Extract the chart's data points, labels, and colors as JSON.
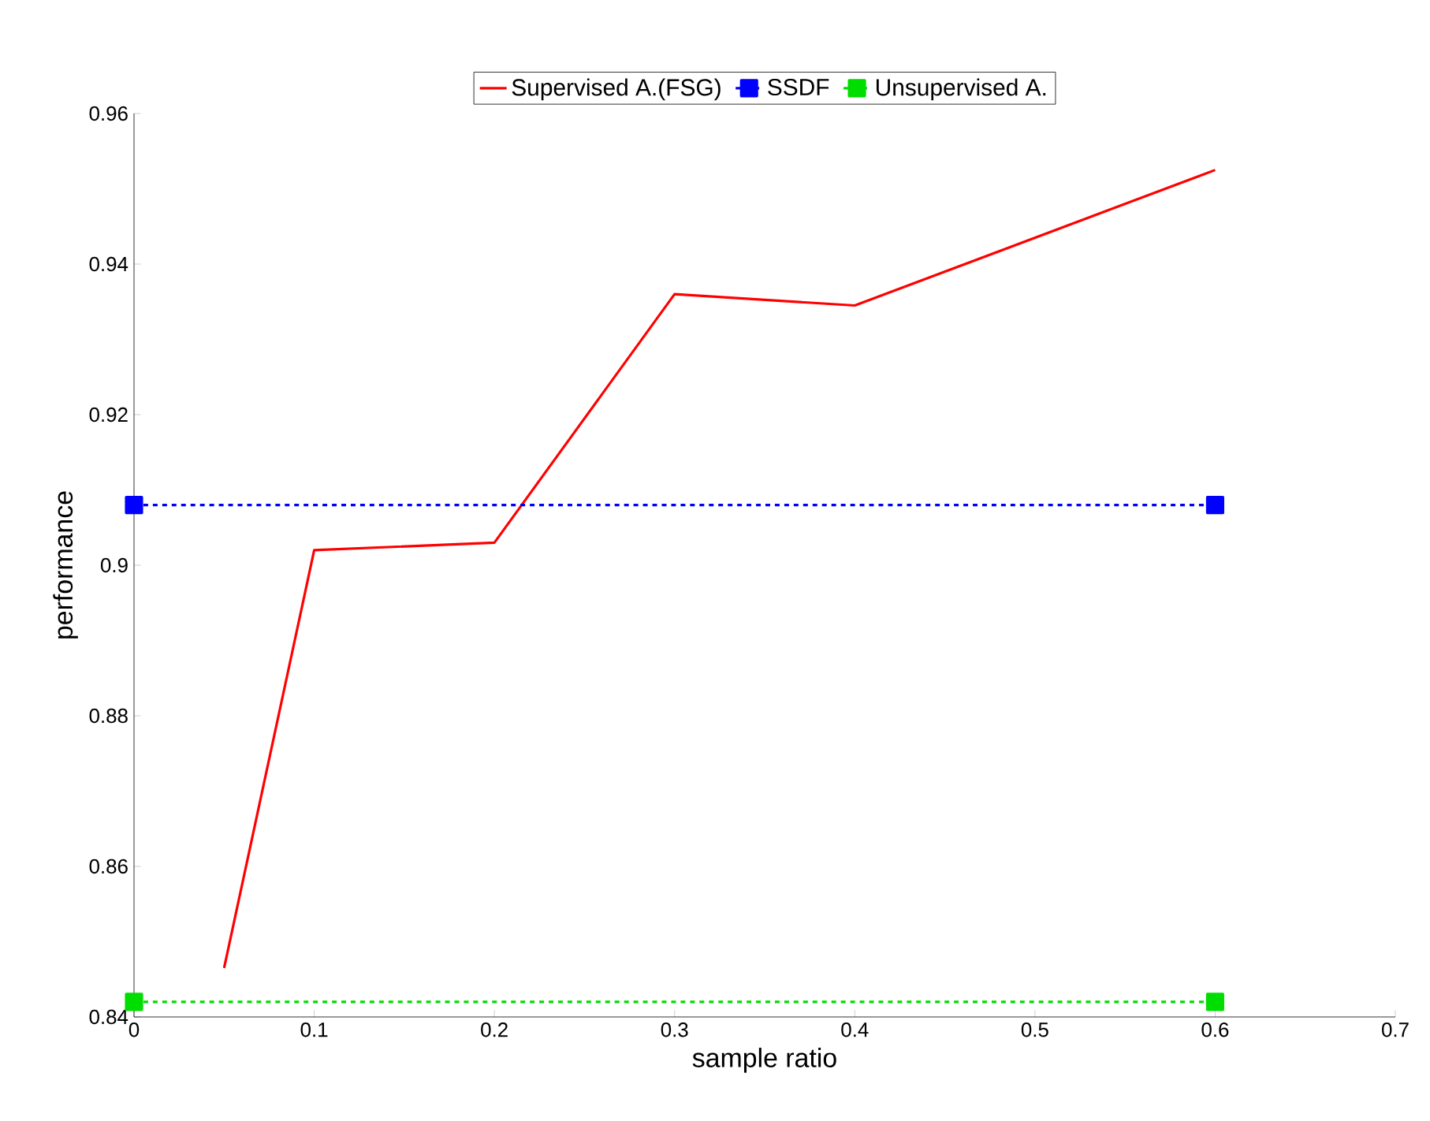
{
  "chart_data": {
    "type": "line",
    "xlabel": "sample ratio",
    "ylabel": "performance",
    "series": [
      {
        "name": "Supervised A.(FSG)",
        "color": "#ff0000",
        "x": [
          0.05,
          0.1,
          0.2,
          0.3,
          0.4,
          0.6
        ],
        "values": [
          0.8465,
          0.902,
          0.903,
          0.936,
          0.9345,
          0.9525
        ],
        "marker": "none",
        "line_style": "solid"
      },
      {
        "name": "SSDF",
        "color": "#0000ff",
        "x": [
          0,
          0.6
        ],
        "values": [
          0.908,
          0.908
        ],
        "marker": "square",
        "line_style": "dashed"
      },
      {
        "name": "Unsupervised A.",
        "color": "#00dd00",
        "x": [
          0,
          0.6
        ],
        "values": [
          0.842,
          0.842
        ],
        "marker": "square",
        "line_style": "dashed"
      }
    ],
    "xlim": [
      0,
      0.7
    ],
    "ylim": [
      0.84,
      0.96
    ],
    "xticks": [
      0,
      0.1,
      0.2,
      0.3,
      0.4,
      0.5,
      0.6,
      0.7
    ],
    "yticks": [
      0.84,
      0.86,
      0.88,
      0.9,
      0.92,
      0.94,
      0.96
    ],
    "grid": false,
    "legend": "top"
  }
}
